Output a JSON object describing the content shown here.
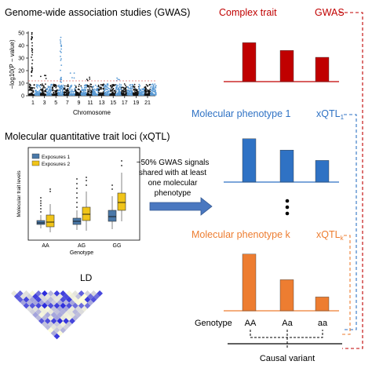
{
  "sections": {
    "gwas_title": "Genome-wide association studies (GWAS)",
    "xqtl_title": "Molecular quantitative trait loci (xQTL)",
    "ld_title": "LD"
  },
  "manhattan": {
    "ylabel": "−log10(P − value)",
    "xlabel": "Chromosome",
    "y_ticks": [
      "0",
      "10",
      "20",
      "30",
      "40",
      "50"
    ],
    "x_ticks": [
      "1",
      "3",
      "5",
      "7",
      "9",
      "11",
      "13",
      "15",
      "17",
      "19",
      "21"
    ],
    "colors": {
      "odd": "#111111",
      "even": "#5b9bd5",
      "threshold": "#e07070"
    }
  },
  "boxplot": {
    "ylabel": "Molecular trait levels",
    "xlabel": "Genotype",
    "categories": [
      "AA",
      "AG",
      "GG"
    ],
    "legend": [
      "Exposures 1",
      "Exposures 2"
    ],
    "colors": {
      "exposure1": "#4a78a8",
      "exposure2": "#f0c419"
    }
  },
  "shared_text": [
    "~50% GWAS signals",
    "shared with at least",
    "one molecular",
    "phenotype"
  ],
  "panels": {
    "complex_trait": {
      "label": "Complex trait",
      "tag": "GWAS",
      "color": "#c00000",
      "values": [
        0.8,
        0.64,
        0.5
      ]
    },
    "molecular_1": {
      "label": "Molecular phenotype 1",
      "tag": "xQTL",
      "tag_sub": "1",
      "color": "#2f72c4",
      "values": [
        0.92,
        0.68,
        0.46
      ]
    },
    "ellipsis": "⋮",
    "molecular_k": {
      "label": "Molecular phenotype k",
      "tag": "xQTL",
      "tag_sub": "k",
      "color": "#ed7d31",
      "values": [
        0.82,
        0.45,
        0.2
      ]
    }
  },
  "genotype": {
    "label": "Genotype",
    "values": [
      "AA",
      "Aa",
      "aa"
    ]
  },
  "causal_variant": "Causal variant"
}
